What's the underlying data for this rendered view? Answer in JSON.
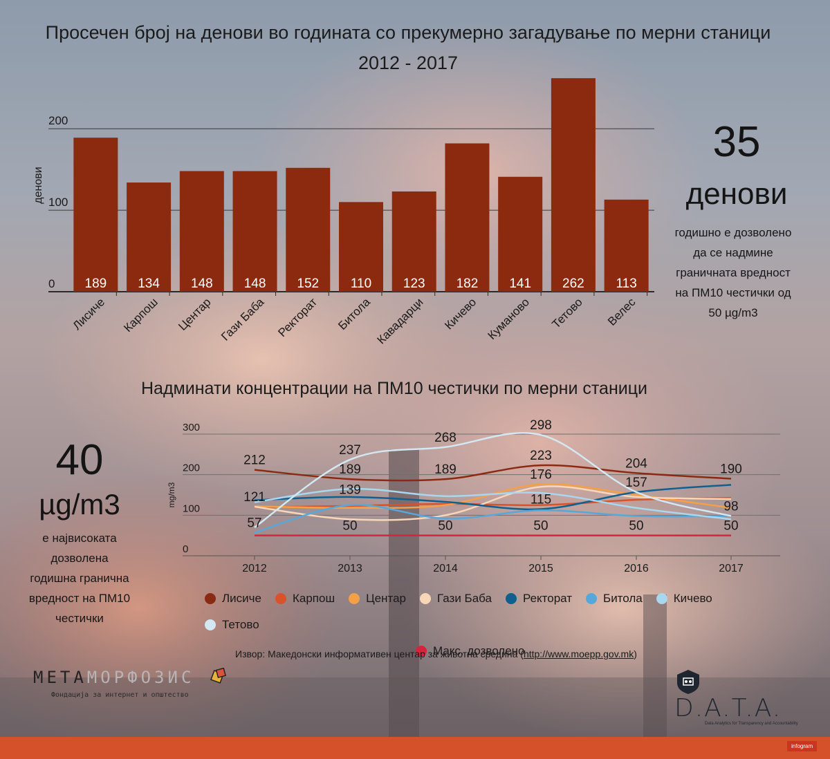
{
  "title_line1": "Просечен број на денови во годината со прекумерно загадување по мерни станици",
  "title_line2": "2012 - 2017",
  "bar_panel": {
    "number": "35",
    "unit": "денови",
    "note": [
      "годишно е дозволено",
      "да се надмине",
      "граничната вредност",
      "на ПМ10 честички од",
      "50 µg/m3"
    ]
  },
  "line_title": "Надминати концентрации на ПМ10 честички по мерни станици",
  "line_panel": {
    "number": "40",
    "unit": "µg/m3",
    "note": [
      "е највисоката",
      "дозволена",
      "годишна гранична",
      "вредност на ПМ10",
      "честички"
    ]
  },
  "source_prefix": "Извор: Македонски информативен центар за животна средина (",
  "source_link": "http://www.moepp.gov.mk",
  "source_suffix": ")",
  "logo_meta": {
    "part1": "МЕТА",
    "part2": "МОРФОЗИС",
    "tagline": "Фондација за интернет и општество"
  },
  "logo_data": {
    "name": "D.A.T.A.",
    "tagline": "Data Analytics for Transparency and Accountability"
  },
  "infogram_label": "infogram",
  "chart_data": [
    {
      "type": "bar",
      "ylabel": "денови",
      "categories": [
        "Лисиче",
        "Карпош",
        "Центар",
        "Гази Баба",
        "Ректорат",
        "Битола",
        "Кавадарци",
        "Кичево",
        "Куманово",
        "Тетово",
        "Велес"
      ],
      "values": [
        189,
        134,
        148,
        148,
        152,
        110,
        123,
        182,
        141,
        262,
        113
      ],
      "yticks": [
        0,
        100,
        200
      ],
      "ylim": [
        0,
        262
      ],
      "bar_color": "#8c2a10"
    },
    {
      "type": "line",
      "ylabel": "mg/m3",
      "x": [
        "2012",
        "2013",
        "2014",
        "2015",
        "2016",
        "2017"
      ],
      "yticks": [
        0,
        100,
        200,
        300
      ],
      "ylim": [
        0,
        300
      ],
      "series": [
        {
          "name": "Лисиче",
          "color": "#8b2a12",
          "values": [
            212,
            189,
            189,
            223,
            204,
            190
          ]
        },
        {
          "name": "Карпош",
          "color": "#d9532a",
          "values": [
            120,
            123,
            128,
            125,
            138,
            143
          ]
        },
        {
          "name": "Центар",
          "color": "#f3a046",
          "values": [
            122,
            118,
            125,
            176,
            150,
            118
          ]
        },
        {
          "name": "Гази Баба",
          "color": "#f7d7b8",
          "values": [
            121,
            90,
            100,
            170,
            145,
            140
          ]
        },
        {
          "name": "Ректорат",
          "color": "#0f5f8f",
          "values": [
            137,
            145,
            133,
            115,
            157,
            175
          ]
        },
        {
          "name": "Битола",
          "color": "#57a8da",
          "values": [
            57,
            125,
            92,
            112,
            98,
            98
          ]
        },
        {
          "name": "Кичево",
          "color": "#a8d7ef",
          "values": [
            132,
            165,
            147,
            155,
            118,
            90
          ]
        },
        {
          "name": "Тетово",
          "color": "#d3e8f2",
          "values": [
            70,
            237,
            268,
            298,
            157,
            98
          ]
        },
        {
          "name": "Макс. дозволено",
          "color": "#d8233b",
          "values": [
            50,
            50,
            50,
            50,
            50,
            50
          ]
        }
      ],
      "point_labels": [
        {
          "x": "2012",
          "y": 212,
          "text": "212"
        },
        {
          "x": "2012",
          "y": 121,
          "text": "121"
        },
        {
          "x": "2012",
          "y": 57,
          "text": "57"
        },
        {
          "x": "2013",
          "y": 237,
          "text": "237"
        },
        {
          "x": "2013",
          "y": 189,
          "text": "189"
        },
        {
          "x": "2013",
          "y": 139,
          "text": "139"
        },
        {
          "x": "2013",
          "y": 50,
          "text": "50"
        },
        {
          "x": "2014",
          "y": 268,
          "text": "268"
        },
        {
          "x": "2014",
          "y": 189,
          "text": "189"
        },
        {
          "x": "2014",
          "y": 50,
          "text": "50"
        },
        {
          "x": "2015",
          "y": 298,
          "text": "298"
        },
        {
          "x": "2015",
          "y": 223,
          "text": "223"
        },
        {
          "x": "2015",
          "y": 176,
          "text": "176"
        },
        {
          "x": "2015",
          "y": 115,
          "text": "115"
        },
        {
          "x": "2015",
          "y": 50,
          "text": "50"
        },
        {
          "x": "2016",
          "y": 204,
          "text": "204"
        },
        {
          "x": "2016",
          "y": 157,
          "text": "157"
        },
        {
          "x": "2016",
          "y": 50,
          "text": "50"
        },
        {
          "x": "2017",
          "y": 190,
          "text": "190"
        },
        {
          "x": "2017",
          "y": 98,
          "text": "98"
        },
        {
          "x": "2017",
          "y": 50,
          "text": "50"
        }
      ]
    }
  ]
}
